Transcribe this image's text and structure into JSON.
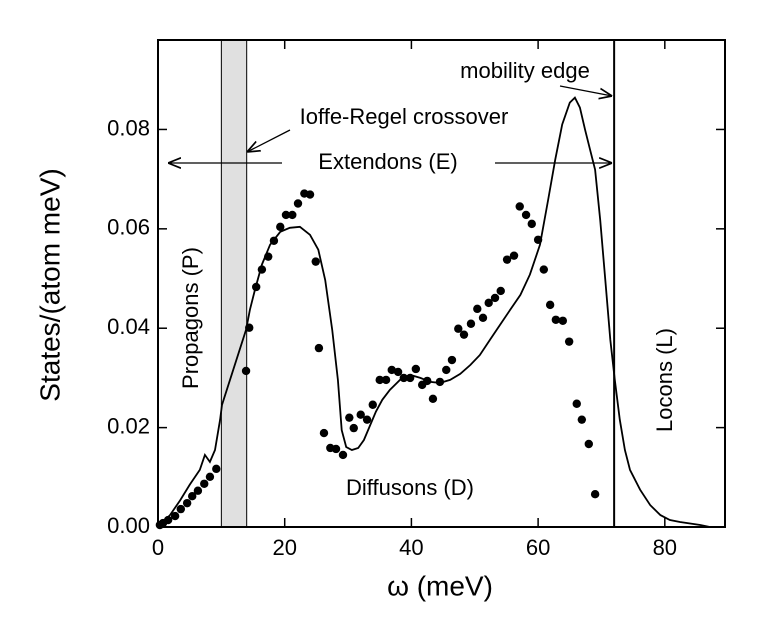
{
  "chart_data": {
    "type": "line",
    "xlabel": "ω (meV)",
    "ylabel": "States/(atom meV)",
    "xlim": [
      0,
      89.5
    ],
    "ylim": [
      0,
      0.098
    ],
    "xticks": [
      0,
      20,
      40,
      60,
      80
    ],
    "yticks": [
      {
        "value": 0,
        "label": "0.00"
      },
      {
        "value": 0.02,
        "label": "0.02"
      },
      {
        "value": 0.04,
        "label": "0.04"
      },
      {
        "value": 0.06,
        "label": "0.06"
      },
      {
        "value": 0.08,
        "label": "0.08"
      }
    ],
    "shaded_band": [
      10,
      14
    ],
    "band_color": "#e0e0e0",
    "vline": 72,
    "annotations": {
      "mobility_edge": "mobility edge",
      "ioffe_regel": "Ioffe-Regel crossover",
      "extendons": "Extendons (E)",
      "propagons": "Propagons (P)",
      "diffusons": "Diffusons (D)",
      "locons": "Locons (L)"
    },
    "series": [
      {
        "marker": "none",
        "color": "#000000",
        "x": [
          0,
          1.9,
          3.5,
          5.0,
          6.6,
          7.4,
          8.2,
          9.0,
          9.8,
          10.1,
          13.9,
          14.5,
          15.3,
          16.4,
          17.7,
          19.3,
          20.8,
          22.4,
          24.0,
          25.3,
          26.4,
          27.5,
          28.4,
          29.0,
          29.7,
          30.6,
          31.6,
          32.5,
          33.5,
          34.4,
          35.4,
          36.6,
          38.2,
          39.8,
          41.4,
          43.0,
          44.5,
          46.1,
          47.7,
          49.3,
          50.8,
          52.4,
          54.0,
          55.6,
          57.2,
          58.7,
          60.3,
          61.6,
          62.7,
          63.8,
          65.0,
          65.8,
          66.6,
          67.4,
          68.2,
          69.0,
          69.8,
          70.6,
          71.4,
          72.1,
          72.9,
          73.7,
          74.5,
          76.1,
          77.7,
          79.3,
          80.8,
          82.4,
          85.6,
          87.1
        ],
        "y": [
          0,
          0.0024,
          0.0054,
          0.0085,
          0.0115,
          0.0145,
          0.0131,
          0.0155,
          0.0216,
          0.0246,
          0.0397,
          0.0437,
          0.0477,
          0.0528,
          0.0568,
          0.0594,
          0.0602,
          0.0604,
          0.0588,
          0.0558,
          0.0497,
          0.0397,
          0.0296,
          0.0195,
          0.0161,
          0.0155,
          0.0159,
          0.0175,
          0.0205,
          0.0232,
          0.0256,
          0.0276,
          0.0296,
          0.0306,
          0.03,
          0.0292,
          0.029,
          0.0296,
          0.0308,
          0.0326,
          0.0346,
          0.0377,
          0.0407,
          0.0437,
          0.0467,
          0.0508,
          0.0568,
          0.0659,
          0.0739,
          0.081,
          0.0854,
          0.0864,
          0.0844,
          0.08,
          0.0759,
          0.0719,
          0.0618,
          0.0497,
          0.0377,
          0.0296,
          0.0216,
          0.0155,
          0.0115,
          0.0075,
          0.0044,
          0.0024,
          0.0014,
          0.001,
          0.0004,
          0
        ]
      },
      {
        "marker": "circle",
        "color": "#000000",
        "x": [
          0.3,
          0.8,
          1.6,
          2.7,
          3.6,
          4.6,
          5.4,
          6.3,
          7.3,
          8.2,
          9.2,
          13.9,
          14.4,
          15.5,
          16.4,
          17.4,
          18.3,
          19.3,
          20.2,
          21.2,
          22.1,
          23.1,
          24.0,
          24.9,
          25.4,
          26.2,
          27.2,
          28.1,
          29.2,
          30.2,
          30.9,
          32.0,
          33.0,
          33.9,
          35.0,
          36.0,
          36.9,
          37.9,
          38.8,
          39.8,
          40.7,
          41.7,
          42.5,
          43.4,
          44.5,
          45.5,
          46.4,
          47.4,
          48.3,
          49.4,
          50.4,
          51.3,
          52.2,
          53.2,
          54.1,
          55.1,
          56.2,
          57.1,
          58.1,
          59.0,
          60.0,
          60.9,
          61.9,
          62.8,
          63.9,
          64.9,
          66.1,
          66.9,
          68.0,
          69.0
        ],
        "y": [
          0.0004,
          0.0008,
          0.0014,
          0.0022,
          0.0036,
          0.0048,
          0.0062,
          0.0073,
          0.0087,
          0.0101,
          0.0117,
          0.0314,
          0.0401,
          0.0483,
          0.0518,
          0.0544,
          0.0576,
          0.0604,
          0.0628,
          0.0628,
          0.0651,
          0.0671,
          0.0669,
          0.0534,
          0.036,
          0.0189,
          0.0159,
          0.0157,
          0.0145,
          0.022,
          0.0199,
          0.0226,
          0.0216,
          0.0246,
          0.0296,
          0.0296,
          0.0316,
          0.0312,
          0.03,
          0.03,
          0.0318,
          0.0286,
          0.0294,
          0.0258,
          0.0292,
          0.0316,
          0.0336,
          0.0399,
          0.0387,
          0.0409,
          0.0439,
          0.0421,
          0.0451,
          0.0461,
          0.0475,
          0.0538,
          0.0546,
          0.0645,
          0.0628,
          0.061,
          0.0578,
          0.0518,
          0.0447,
          0.0417,
          0.0415,
          0.0373,
          0.0248,
          0.0216,
          0.0167,
          0.0066
        ]
      }
    ]
  }
}
